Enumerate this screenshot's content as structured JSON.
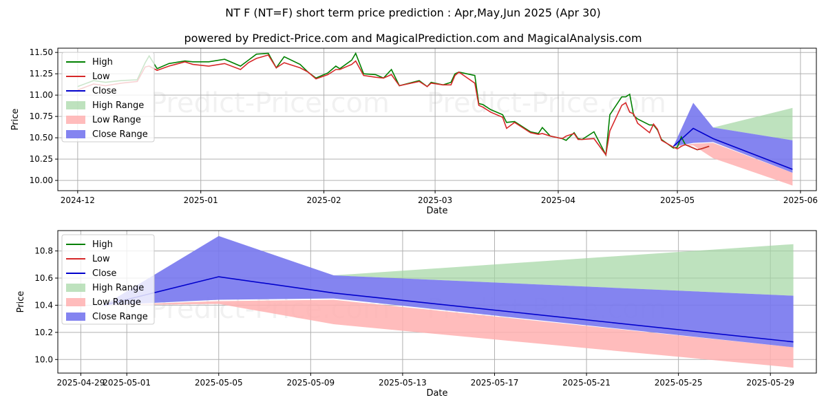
{
  "title": "NT F (NT=F) short term price prediction : Apr,May,Jun 2025 (Apr 30)",
  "subtitle": "powered by Predict-Price.com and MagicalPrediction.com and MagicalAnalysis.com",
  "watermark": "Predict-Price.com",
  "colors": {
    "high": "#008000",
    "low": "#d62728",
    "close": "#0000cc",
    "high_range": "#a3d6a3",
    "low_range": "#ffb0b0",
    "close_range": "#7777ee"
  },
  "chart_data": [
    {
      "type": "line",
      "xlabel": "Date",
      "ylabel": "Price",
      "grid": true,
      "legend_placement": "top-left",
      "xlim": [
        "2024-11-26",
        "2025-06-05"
      ],
      "ylim": [
        9.88,
        11.55
      ],
      "xticks": [
        "2024-12",
        "2025-01",
        "2025-02",
        "2025-03",
        "2025-04",
        "2025-05",
        "2025-06"
      ],
      "xtick_dates": [
        "2024-12-01",
        "2025-01-01",
        "2025-02-01",
        "2025-03-01",
        "2025-04-01",
        "2025-05-01",
        "2025-06-01"
      ],
      "yticks": [
        "10.00",
        "10.25",
        "10.50",
        "10.75",
        "11.00",
        "11.25",
        "11.50"
      ],
      "legend": [
        "High",
        "Low",
        "Close",
        "High Range",
        "Low Range",
        "Close Range"
      ],
      "history": [
        {
          "d": "2024-12-01",
          "h": 11.1,
          "l": 11.06
        },
        {
          "d": "2024-12-05",
          "h": 11.17,
          "l": 11.13
        },
        {
          "d": "2024-12-08",
          "h": 11.15,
          "l": 11.11
        },
        {
          "d": "2024-12-12",
          "h": 11.17,
          "l": 11.14
        },
        {
          "d": "2024-12-16",
          "h": 11.18,
          "l": 11.16
        },
        {
          "d": "2024-12-18",
          "h": 11.38,
          "l": 11.33
        },
        {
          "d": "2024-12-19",
          "h": 11.46,
          "l": 11.34
        },
        {
          "d": "2024-12-21",
          "h": 11.31,
          "l": 11.29
        },
        {
          "d": "2024-12-24",
          "h": 11.37,
          "l": 11.34
        },
        {
          "d": "2024-12-28",
          "h": 11.4,
          "l": 11.39
        },
        {
          "d": "2024-12-30",
          "h": 11.39,
          "l": 11.36
        },
        {
          "d": "2025-01-03",
          "h": 11.39,
          "l": 11.34
        },
        {
          "d": "2025-01-07",
          "h": 11.42,
          "l": 11.37
        },
        {
          "d": "2025-01-11",
          "h": 11.34,
          "l": 11.3
        },
        {
          "d": "2025-01-13",
          "h": 11.41,
          "l": 11.38
        },
        {
          "d": "2025-01-15",
          "h": 11.48,
          "l": 11.43
        },
        {
          "d": "2025-01-18",
          "h": 11.49,
          "l": 11.47
        },
        {
          "d": "2025-01-20",
          "h": 11.32,
          "l": 11.32
        },
        {
          "d": "2025-01-22",
          "h": 11.45,
          "l": 11.38
        },
        {
          "d": "2025-01-26",
          "h": 11.36,
          "l": 11.32
        },
        {
          "d": "2025-01-28",
          "h": 11.27,
          "l": 11.27
        },
        {
          "d": "2025-01-30",
          "h": 11.2,
          "l": 11.19
        },
        {
          "d": "2025-02-02",
          "h": 11.26,
          "l": 11.24
        },
        {
          "d": "2025-02-04",
          "h": 11.34,
          "l": 11.3
        },
        {
          "d": "2025-02-05",
          "h": 11.31,
          "l": 11.3
        },
        {
          "d": "2025-02-08",
          "h": 11.41,
          "l": 11.36
        },
        {
          "d": "2025-02-09",
          "h": 11.49,
          "l": 11.4
        },
        {
          "d": "2025-02-11",
          "h": 11.25,
          "l": 11.23
        },
        {
          "d": "2025-02-14",
          "h": 11.24,
          "l": 11.21
        },
        {
          "d": "2025-02-16",
          "h": 11.2,
          "l": 11.2
        },
        {
          "d": "2025-02-18",
          "h": 11.3,
          "l": 11.24
        },
        {
          "d": "2025-02-20",
          "h": 11.11,
          "l": 11.11
        },
        {
          "d": "2025-02-25",
          "h": 11.17,
          "l": 11.16
        },
        {
          "d": "2025-02-27",
          "h": 11.1,
          "l": 11.1
        },
        {
          "d": "2025-02-28",
          "h": 11.15,
          "l": 11.14
        },
        {
          "d": "2025-03-03",
          "h": 11.12,
          "l": 11.12
        },
        {
          "d": "2025-03-05",
          "h": 11.15,
          "l": 11.12
        },
        {
          "d": "2025-03-06",
          "h": 11.25,
          "l": 11.23
        },
        {
          "d": "2025-03-07",
          "h": 11.27,
          "l": 11.27
        },
        {
          "d": "2025-03-11",
          "h": 11.23,
          "l": 11.14
        },
        {
          "d": "2025-03-12",
          "h": 10.9,
          "l": 10.88
        },
        {
          "d": "2025-03-13",
          "h": 10.89,
          "l": 10.86
        },
        {
          "d": "2025-03-15",
          "h": 10.83,
          "l": 10.8
        },
        {
          "d": "2025-03-18",
          "h": 10.77,
          "l": 10.74
        },
        {
          "d": "2025-03-19",
          "h": 10.68,
          "l": 10.61
        },
        {
          "d": "2025-03-21",
          "h": 10.69,
          "l": 10.68
        },
        {
          "d": "2025-03-25",
          "h": 10.57,
          "l": 10.56
        },
        {
          "d": "2025-03-27",
          "h": 10.55,
          "l": 10.54
        },
        {
          "d": "2025-03-28",
          "h": 10.62,
          "l": 10.55
        },
        {
          "d": "2025-03-30",
          "h": 10.52,
          "l": 10.52
        },
        {
          "d": "2025-04-02",
          "h": 10.49,
          "l": 10.49
        },
        {
          "d": "2025-04-03",
          "h": 10.47,
          "l": 10.52
        },
        {
          "d": "2025-04-05",
          "h": 10.56,
          "l": 10.55
        },
        {
          "d": "2025-04-06",
          "h": 10.49,
          "l": 10.48
        },
        {
          "d": "2025-04-07",
          "h": 10.48,
          "l": 10.48
        },
        {
          "d": "2025-04-10",
          "h": 10.57,
          "l": 10.49
        },
        {
          "d": "2025-04-13",
          "h": 10.3,
          "l": 10.3
        },
        {
          "d": "2025-04-14",
          "h": 10.77,
          "l": 10.58
        },
        {
          "d": "2025-04-17",
          "h": 10.98,
          "l": 10.88
        },
        {
          "d": "2025-04-18",
          "h": 10.98,
          "l": 10.91
        },
        {
          "d": "2025-04-19",
          "h": 11.01,
          "l": 10.8
        },
        {
          "d": "2025-04-20",
          "h": 10.76,
          "l": 10.78
        },
        {
          "d": "2025-04-21",
          "h": 10.72,
          "l": 10.67
        },
        {
          "d": "2025-04-24",
          "h": 10.65,
          "l": 10.56
        },
        {
          "d": "2025-04-25",
          "h": 10.65,
          "l": 10.66
        },
        {
          "d": "2025-04-26",
          "h": 10.59,
          "l": 10.6
        },
        {
          "d": "2025-04-27",
          "h": 10.48,
          "l": 10.47
        },
        {
          "d": "2025-04-30",
          "h": 10.38,
          "l": 10.39
        },
        {
          "d": "2025-05-01",
          "h": 10.39,
          "l": 10.37
        },
        {
          "d": "2025-05-02",
          "h": 10.51,
          "l": 10.4
        },
        {
          "d": "2025-05-03",
          "h": 10.42,
          "l": 10.42
        },
        {
          "d": "2025-05-06",
          "h": 10.36,
          "l": 10.36
        },
        {
          "d": "2025-05-07",
          "h": 10.37,
          "l": 10.37
        },
        {
          "d": "2025-05-09",
          "h": 10.4,
          "l": 10.4
        }
      ],
      "forecast": [
        {
          "d": "2025-04-30",
          "close": 10.4,
          "close_hi": 10.4,
          "close_lo": 10.4,
          "high_hi": 10.4,
          "high_lo": 10.4,
          "low_hi": 10.4,
          "low_lo": 10.4
        },
        {
          "d": "2025-05-05",
          "close": 10.61,
          "close_hi": 10.91,
          "close_lo": 10.44,
          "high_hi": 10.61,
          "high_lo": 10.61,
          "low_hi": 10.43,
          "low_lo": 10.41
        },
        {
          "d": "2025-05-10",
          "close": 10.49,
          "close_hi": 10.62,
          "close_lo": 10.45,
          "high_hi": 10.62,
          "high_lo": 10.62,
          "low_hi": 10.44,
          "low_lo": 10.26
        },
        {
          "d": "2025-05-30",
          "close": 10.13,
          "close_hi": 10.47,
          "close_lo": 10.09,
          "high_hi": 10.85,
          "high_lo": 10.47,
          "low_hi": 10.09,
          "low_lo": 9.94
        }
      ]
    },
    {
      "type": "line",
      "xlabel": "Date",
      "ylabel": "Price",
      "grid": true,
      "legend_placement": "top-left",
      "xlim": [
        "2025-04-28",
        "2025-05-31"
      ],
      "ylim": [
        9.9,
        10.95
      ],
      "xticks": [
        "2025-04-29",
        "2025-05-01",
        "2025-05-05",
        "2025-05-09",
        "2025-05-13",
        "2025-05-17",
        "2025-05-21",
        "2025-05-25",
        "2025-05-29"
      ],
      "yticks": [
        "10.0",
        "10.2",
        "10.4",
        "10.6",
        "10.8"
      ],
      "legend": [
        "High",
        "Low",
        "Close",
        "High Range",
        "Low Range",
        "Close Range"
      ]
    }
  ]
}
